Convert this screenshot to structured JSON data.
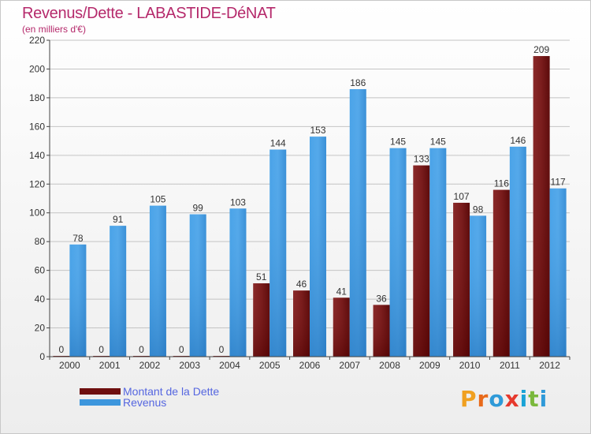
{
  "title": "Revenus/Dette - LABASTIDE-DéNAT",
  "subtitle": "(en milliers d'€)",
  "brand": {
    "name": "Proxiti",
    "letters": [
      "P",
      "r",
      "o",
      "x",
      "i",
      "t",
      "i"
    ],
    "colors": [
      "#f0a020",
      "#e86a1a",
      "#2f9ad8",
      "#e6392d",
      "#1aa3d6",
      "#7ab83c",
      "#2f9ad8"
    ]
  },
  "colors": {
    "dette": "#7a1a1a",
    "revenus": "#3d96dd",
    "title": "#b5296b",
    "legend_text": "#5566e0"
  },
  "legend": [
    {
      "label": "Montant de la Dette",
      "color": "#6e0f0f"
    },
    {
      "label": "Revenus",
      "color": "#3d96dd"
    }
  ],
  "chart_data": {
    "type": "bar",
    "title": "Revenus/Dette - LABASTIDE-DéNAT",
    "ylabel": "(en milliers d'€)",
    "xlabel": "",
    "categories": [
      "2000",
      "2001",
      "2002",
      "2003",
      "2004",
      "2005",
      "2006",
      "2007",
      "2008",
      "2009",
      "2010",
      "2011",
      "2012"
    ],
    "series": [
      {
        "name": "Montant de la Dette",
        "values": [
          0,
          0,
          0,
          0,
          0,
          51,
          46,
          41,
          36,
          133,
          107,
          116,
          209
        ]
      },
      {
        "name": "Revenus",
        "values": [
          78,
          91,
          105,
          99,
          103,
          144,
          153,
          186,
          145,
          145,
          98,
          146,
          117
        ]
      }
    ],
    "ylim": [
      0,
      220
    ],
    "yticks": [
      0,
      20,
      40,
      60,
      80,
      100,
      120,
      140,
      160,
      180,
      200,
      220
    ],
    "grid": true,
    "legend_position": "bottom-left"
  }
}
